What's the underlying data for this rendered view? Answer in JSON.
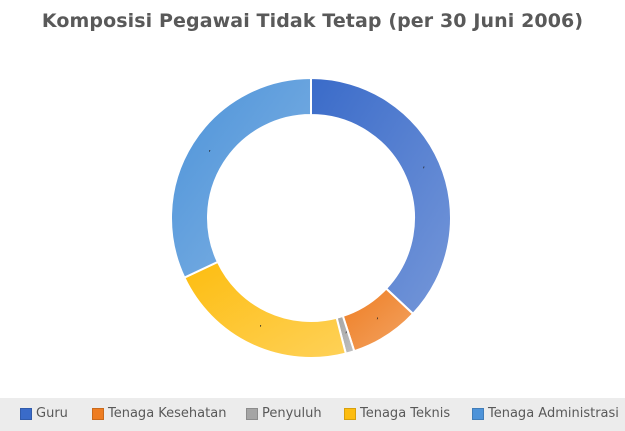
{
  "chart_data": {
    "type": "pie",
    "variant": "doughnut",
    "title": "Komposisi Pegawai Tidak Tetap (per 30 Juni 2006)",
    "categories": [
      "Guru",
      "Tenaga Kesehatan",
      "Penyuluh",
      "Tenaga Teknis",
      "Tenaga Administrasi"
    ],
    "values": [
      37,
      8,
      1,
      22,
      32
    ],
    "unit": "percent (estimated share)",
    "colors": [
      "#3a6bc9",
      "#ee7d22",
      "#a5a5a5",
      "#fdbd10",
      "#4d93d9"
    ],
    "legend": "bottom"
  }
}
